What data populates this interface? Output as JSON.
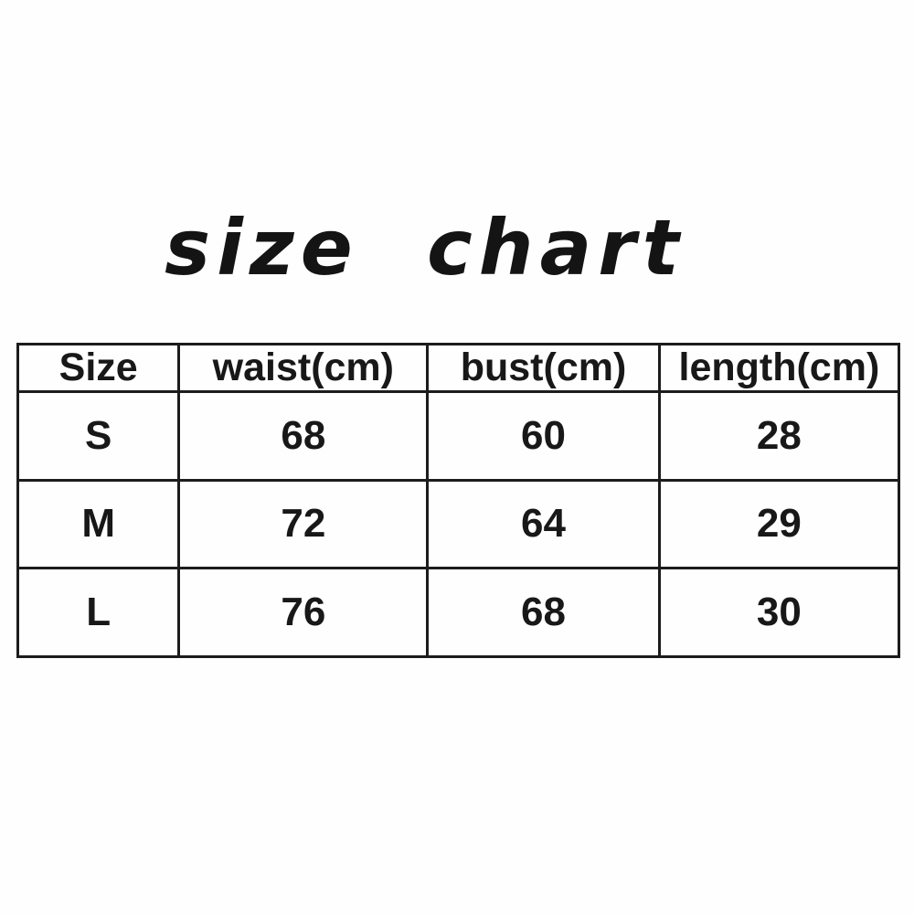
{
  "title": "size chart",
  "chart_data": {
    "type": "table",
    "title": "size chart",
    "columns": [
      "Size",
      "waist(cm)",
      "bust(cm)",
      "length(cm)"
    ],
    "rows": [
      [
        "S",
        "68",
        "60",
        "28"
      ],
      [
        "M",
        "72",
        "64",
        "29"
      ],
      [
        "L",
        "76",
        "68",
        "30"
      ]
    ],
    "units": "cm",
    "layout": {
      "grid": "on",
      "header_row": true
    }
  },
  "colors": {
    "text": "#181818",
    "border": "#1c1c1c",
    "background": "#fefefe"
  }
}
